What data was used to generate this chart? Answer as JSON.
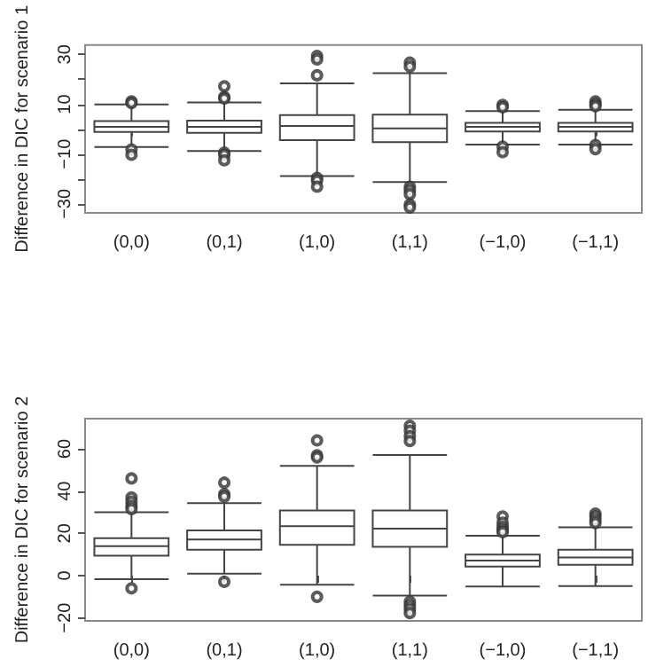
{
  "chart_data": [
    {
      "type": "box",
      "ylabel": "Difference in DIC for scenario 1",
      "categories": [
        "(0,0)",
        "(0,1)",
        "(1,0)",
        "(1,1)",
        "(−1,0)",
        "(−1,1)"
      ],
      "ylim": [
        -33.6,
        33.8
      ],
      "yticks": [
        {
          "value": -30,
          "label": "−30"
        },
        {
          "value": -20,
          "label": null
        },
        {
          "value": -10,
          "label": "−10"
        },
        {
          "value": 0,
          "label": null
        },
        10,
        {
          "value": 20,
          "label": null
        },
        30
      ],
      "grid": false,
      "boxes": [
        {
          "low": -7.2,
          "q1": -1.1,
          "median": 0.9,
          "q3": 3.2,
          "high": 9.9,
          "outliers": [
            11.1,
            10.5,
            -8.2,
            -10.3
          ]
        },
        {
          "low": -8.8,
          "q1": -1.5,
          "median": 0.9,
          "q3": 3.4,
          "high": 10.7,
          "outliers": [
            17.2,
            12.9,
            12.3,
            -9.4,
            -10.3,
            -12.5
          ]
        },
        {
          "low": -18.8,
          "q1": -4.4,
          "median": 1.3,
          "q3": 5.6,
          "high": 18.4,
          "outliers": [
            29.4,
            28,
            21.6,
            -19.6,
            -20.6,
            -23.1
          ]
        },
        {
          "low": -21.2,
          "q1": -5.2,
          "median": 0.3,
          "q3": 5.8,
          "high": 22.5,
          "outliers": [
            26.7,
            25.1,
            -23.1,
            -24.5,
            -26.1,
            -30.2,
            -31.4
          ]
        },
        {
          "low": -6.2,
          "q1": -0.9,
          "median": 0.9,
          "q3": 2.5,
          "high": 7.2,
          "outliers": [
            9.7,
            8.8,
            -7,
            -9.2
          ]
        },
        {
          "low": -6.2,
          "q1": -0.9,
          "median": 0.9,
          "q3": 2.5,
          "high": 7.8,
          "outliers": [
            11.1,
            10.1,
            9.2,
            -6.4,
            -8
          ]
        }
      ]
    },
    {
      "type": "box",
      "ylabel": "Difference in DIC for scenario 2",
      "categories": [
        "(0,0)",
        "(0,1)",
        "(1,0)",
        "(1,1)",
        "(−1,0)",
        "(−1,1)"
      ],
      "ylim": [
        -21.4,
        74.3
      ],
      "yticks": [
        {
          "value": -20,
          "label": "−20"
        },
        0,
        20,
        40,
        60
      ],
      "grid": false,
      "boxes": [
        {
          "low": -1.7,
          "q1": 9.4,
          "median": 14,
          "q3": 17.7,
          "high": 30,
          "outliers": [
            46,
            37,
            35,
            33,
            31.5,
            -6
          ]
        },
        {
          "low": 0.9,
          "q1": 12.3,
          "median": 17.1,
          "q3": 21.4,
          "high": 34.3,
          "outliers": [
            44,
            38.6,
            37.4,
            -2.9
          ]
        },
        {
          "low": -4.3,
          "q1": 14.6,
          "median": 23.4,
          "q3": 30.9,
          "high": 52,
          "outliers": [
            64,
            57,
            56,
            -10
          ]
        },
        {
          "low": -9.4,
          "q1": 13.7,
          "median": 22.3,
          "q3": 30.9,
          "high": 57.1,
          "outliers": [
            70.9,
            68.6,
            66,
            63.7,
            -12.3,
            -14,
            -15.7,
            -17.7
          ]
        },
        {
          "low": -5.1,
          "q1": 4.3,
          "median": 7.1,
          "q3": 10,
          "high": 18.9,
          "outliers": [
            28,
            25.1,
            23.1,
            21.7,
            20.6
          ]
        },
        {
          "low": -4.9,
          "q1": 5.1,
          "median": 8.6,
          "q3": 12.3,
          "high": 22.9,
          "outliers": [
            29.4,
            28,
            26.3,
            24.9
          ]
        }
      ]
    }
  ]
}
